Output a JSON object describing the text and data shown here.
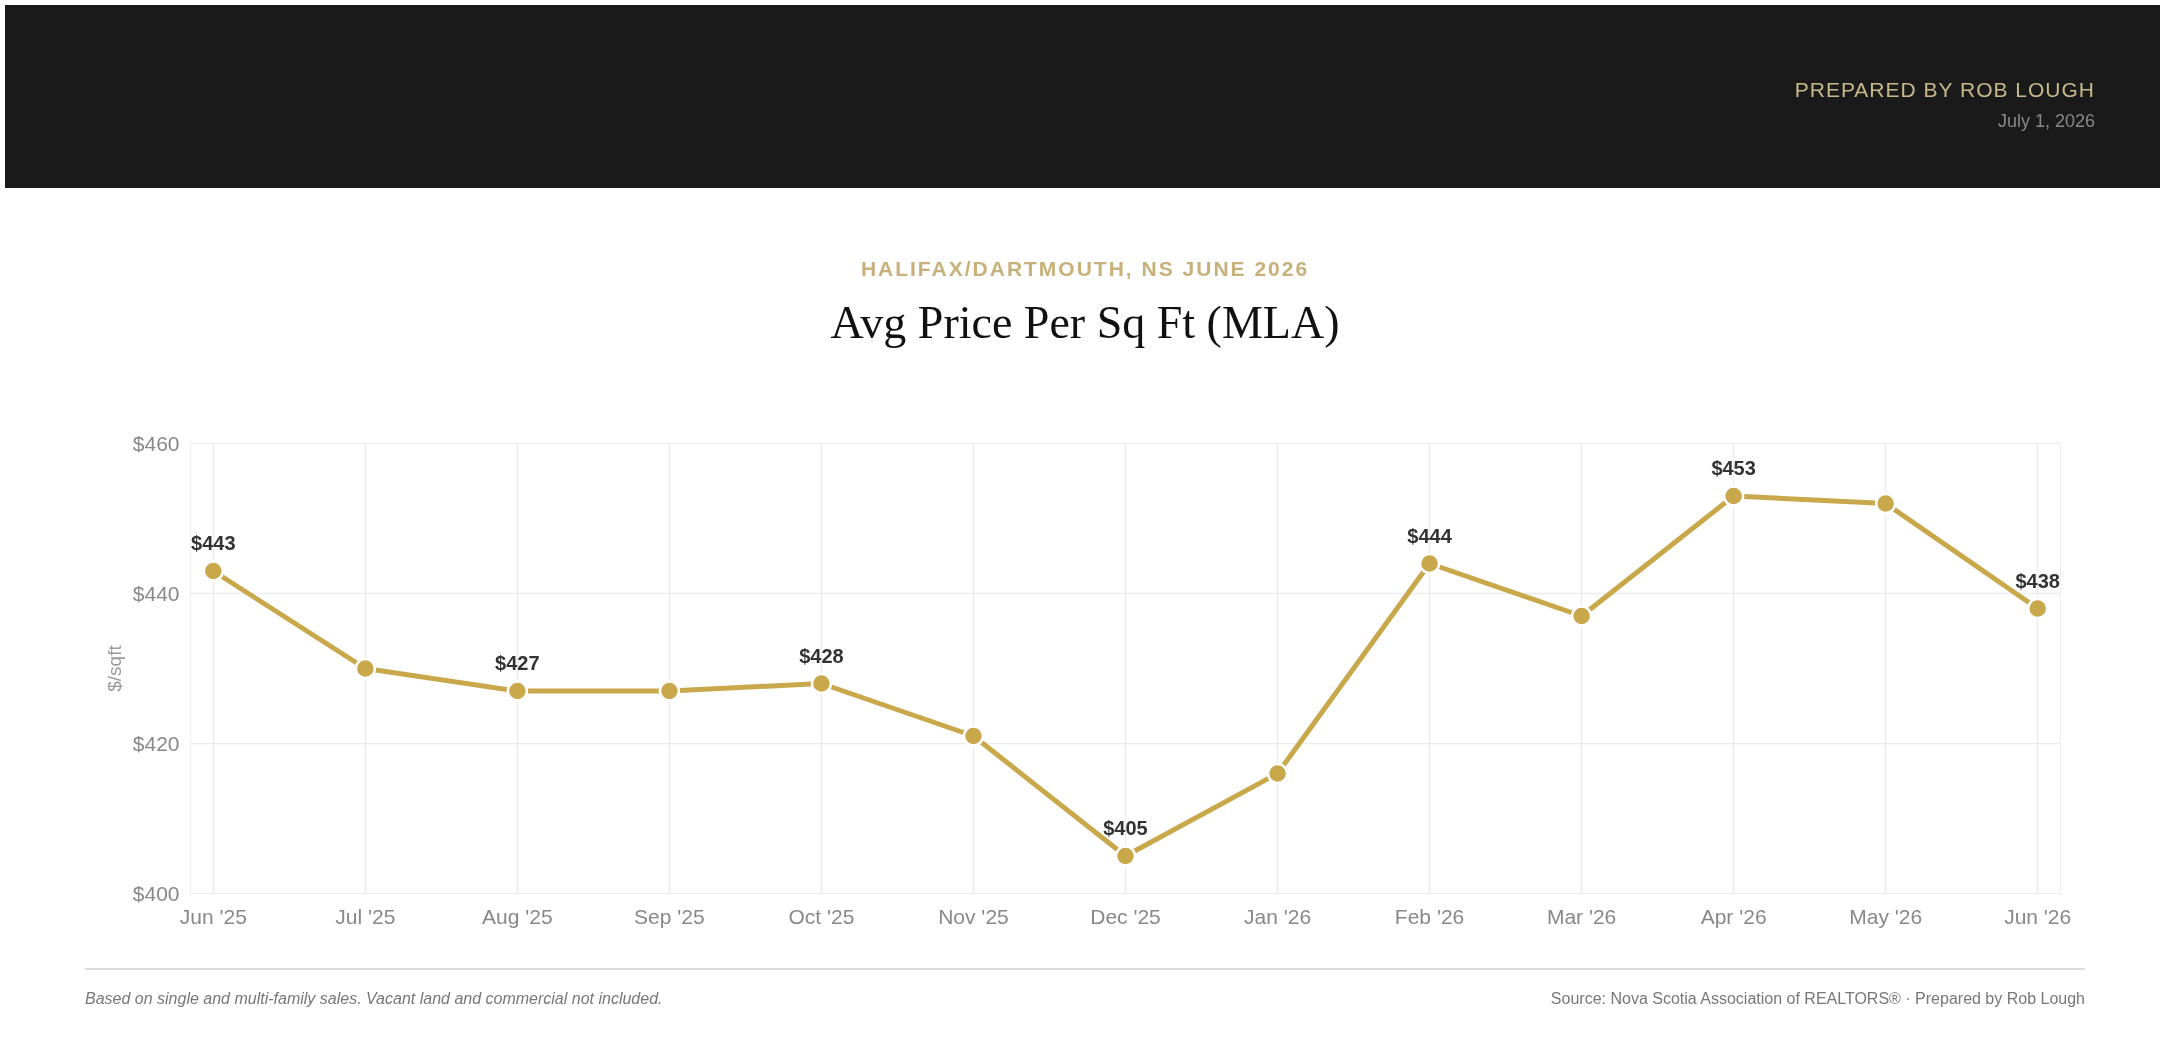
{
  "chart_data": {
    "type": "line",
    "subtitle": "HALIFAX/DARTMOUTH, NS JUNE 2026",
    "title": "Avg Price Per Sq Ft (MLA)",
    "ylabel": "$/sqft",
    "categories": [
      "Jun '25",
      "Jul '25",
      "Aug '25",
      "Sep '25",
      "Oct '25",
      "Nov '25",
      "Dec '25",
      "Jan '26",
      "Feb '26",
      "Mar '26",
      "Apr '26",
      "May '26",
      "Jun '26"
    ],
    "series": [
      {
        "color": "#c9a84c",
        "values": [
          443,
          430,
          427,
          427,
          428,
          421,
          405,
          416,
          444,
          437,
          453,
          452,
          438
        ],
        "value_labels": [
          "$443",
          null,
          "$427",
          null,
          "$428",
          null,
          "$405",
          null,
          "$444",
          null,
          "$453",
          null,
          "$438"
        ]
      }
    ],
    "ylim": [
      400,
      460
    ],
    "yticks": [
      {
        "value": 400,
        "label": "$400"
      },
      {
        "value": 420,
        "label": "$420"
      },
      {
        "value": 440,
        "label": "$440"
      },
      {
        "value": 460,
        "label": "$460"
      }
    ],
    "grid": true,
    "marker": "circle",
    "line_style": "solid",
    "annotations": [
      "PREPARED BY ROB LOUGH",
      "July 1, 2026",
      "Based on single and multi-family sales. Vacant land and commercial not included.",
      "Source: Nova Scotia Association of REALTORS® · Prepared by Rob Lough"
    ]
  }
}
